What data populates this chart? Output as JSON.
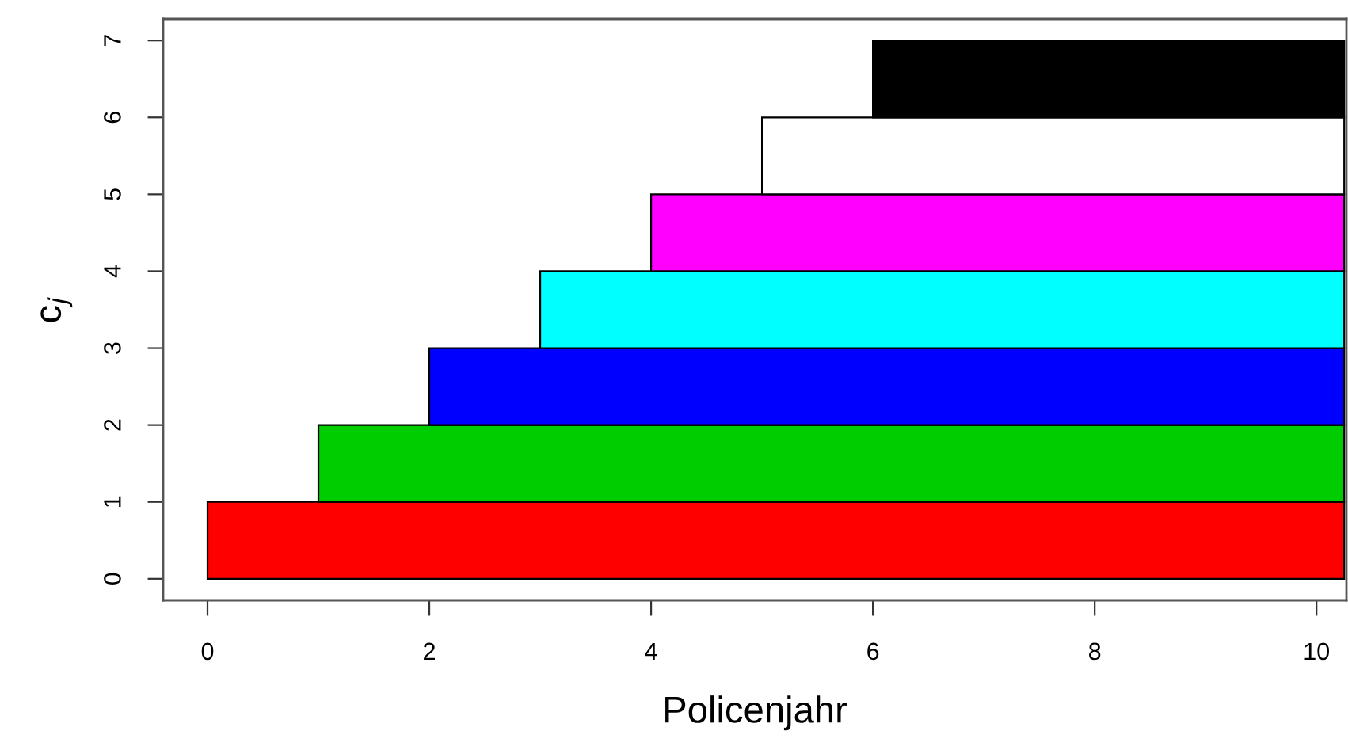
{
  "chart_data": {
    "type": "bar",
    "orientation": "horizontal",
    "xlabel": "Policenjahr",
    "ylabel": "c$_{j}$",
    "x": [
      0.5,
      1.5,
      2.5,
      3.5,
      4.5,
      5.5,
      6.5
    ],
    "base": [
      0,
      1,
      2,
      3,
      4,
      5,
      6
    ],
    "values": [
      10.25,
      9.25,
      8.25,
      7.25,
      6.25,
      5.25,
      4.25
    ],
    "colors": [
      "#ff0000",
      "#00cd00",
      "#0000ff",
      "#00ffff",
      "#ff00ff",
      "#ffffff",
      "#000000"
    ],
    "xlim": [
      -0.4,
      10.27
    ],
    "xticks": [
      0,
      2,
      4,
      6,
      8,
      10
    ],
    "ylim": [
      -0.28,
      7.28
    ],
    "yticks": [
      0,
      1,
      2,
      3,
      4,
      5,
      6,
      7
    ],
    "grid": false,
    "legend": false
  }
}
